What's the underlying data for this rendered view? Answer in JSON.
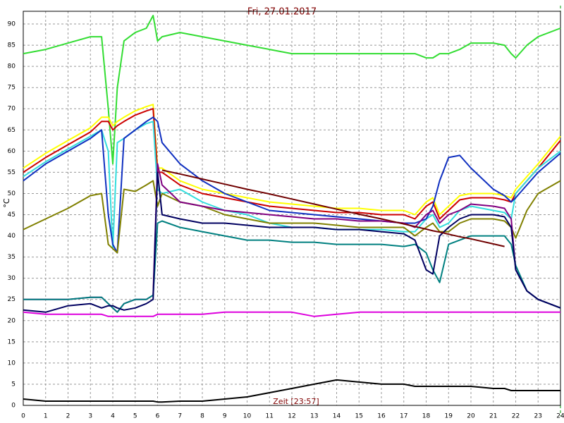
{
  "chart_data": {
    "type": "line",
    "title": "Fri, 27.01.2017",
    "y_label": "°C",
    "x_label": "Zeit [23:57]",
    "x": [
      0,
      1,
      2,
      3,
      3.5,
      3.8,
      4,
      4.2,
      4.5,
      5,
      5.5,
      5.8,
      6,
      6.2,
      7,
      8,
      9,
      10,
      11,
      12,
      13,
      14,
      15,
      16,
      17,
      17.5,
      18,
      18.3,
      18.6,
      19,
      19.5,
      20,
      21,
      21.5,
      21.8,
      22,
      22.5,
      23,
      24
    ],
    "xlim": [
      0,
      24
    ],
    "xticks": [
      0,
      1,
      2,
      3,
      4,
      5,
      6,
      7,
      8,
      9,
      10,
      11,
      12,
      13,
      14,
      15,
      16,
      17,
      18,
      19,
      20,
      21,
      22,
      23,
      24
    ],
    "ylim": [
      0,
      93
    ],
    "yticks": [
      0,
      5,
      10,
      15,
      20,
      25,
      30,
      35,
      40,
      45,
      50,
      55,
      60,
      65,
      70,
      75,
      80,
      85,
      90
    ],
    "grid": true,
    "series": [
      {
        "color": "#33dd33",
        "values": [
          83,
          84,
          85.5,
          87,
          87,
          70,
          57,
          75,
          86,
          88,
          89,
          92,
          86,
          87,
          88,
          87,
          86,
          85,
          84,
          83,
          83,
          83,
          83,
          83,
          83,
          83,
          82,
          82,
          83,
          83,
          84,
          85.5,
          85.5,
          85,
          83,
          82,
          85,
          87,
          89
        ]
      },
      {
        "color": "#ffff00",
        "values": [
          56,
          59.5,
          62.5,
          65.5,
          68,
          68,
          66,
          67,
          68,
          69.5,
          70.5,
          71,
          56,
          56,
          53,
          51,
          50,
          49,
          48,
          47.5,
          47,
          46.5,
          46.5,
          46,
          46,
          45,
          48,
          49,
          45,
          47,
          49.5,
          50,
          50,
          49.5,
          49,
          51,
          54,
          57,
          63.5
        ]
      },
      {
        "color": "#cc0000",
        "values": [
          55,
          58.5,
          61.5,
          64.5,
          67,
          67,
          65,
          66,
          67,
          68.5,
          69.5,
          70,
          55,
          55,
          52,
          50,
          49,
          48,
          47,
          46.5,
          46,
          45.5,
          45.5,
          45,
          45,
          44,
          47,
          48,
          44,
          46,
          48.5,
          49,
          49,
          48.5,
          48,
          50,
          53,
          56,
          62.5
        ]
      },
      {
        "color": "#33dddd",
        "values": [
          54,
          57.5,
          60.5,
          63.5,
          65,
          60,
          37,
          62,
          63,
          65,
          66.5,
          67,
          51,
          50,
          51,
          48,
          46,
          45,
          43,
          42,
          42,
          41.5,
          41.5,
          41.5,
          41,
          41,
          44,
          45,
          42,
          43,
          46,
          47,
          46,
          45.5,
          44,
          50,
          53,
          56,
          60
        ]
      },
      {
        "color": "#1030c0",
        "values": [
          53,
          57,
          60,
          63,
          65,
          45,
          38,
          36,
          63,
          65,
          67,
          68,
          67,
          62,
          57,
          53,
          50,
          48,
          46,
          45.5,
          45,
          44.5,
          44,
          43.5,
          43,
          43,
          44,
          47,
          53,
          58.5,
          59,
          56,
          51,
          49.5,
          48,
          49,
          52,
          55,
          59.5
        ]
      },
      {
        "color": "#808000",
        "values": [
          41.5,
          44,
          46.5,
          49.5,
          50,
          38,
          37,
          36,
          51,
          50.5,
          52,
          53,
          47,
          50,
          48,
          47,
          45,
          44,
          43,
          43,
          43,
          42.5,
          42,
          42,
          42,
          40,
          42,
          43,
          41,
          41,
          43,
          44,
          44,
          43.5,
          42,
          39.5,
          46,
          50,
          53
        ]
      },
      {
        "color": "#800080",
        "values": [
          25,
          25,
          25,
          25.5,
          25.5,
          24,
          23,
          22,
          24,
          25,
          25,
          26,
          57,
          52,
          48,
          47,
          46,
          45.5,
          45,
          44.5,
          44,
          44,
          43.5,
          43.5,
          43,
          42,
          45,
          46,
          43,
          45,
          46,
          47.5,
          47,
          46.5,
          44,
          32,
          27,
          25,
          23
        ]
      },
      {
        "color": "#008080",
        "values": [
          25,
          25,
          25,
          25.5,
          25.5,
          24,
          23,
          22,
          24,
          25,
          25,
          26,
          43,
          43.5,
          42,
          41,
          40,
          39,
          39,
          38.5,
          38.5,
          38,
          38,
          38,
          37.5,
          38,
          36,
          32,
          29,
          38,
          39,
          40,
          40,
          40,
          38,
          33,
          27,
          25,
          23
        ]
      },
      {
        "color": "#000060",
        "values": [
          22.5,
          22,
          23.5,
          24,
          23,
          23.5,
          23.5,
          23,
          22.5,
          23,
          24,
          25,
          55,
          45,
          44,
          43,
          43,
          42.5,
          42,
          42,
          42,
          41.5,
          41.5,
          41,
          40.5,
          39,
          32,
          31,
          40,
          42,
          44,
          45,
          45,
          44.5,
          42,
          32,
          27,
          25,
          23
        ]
      },
      {
        "color": "#dd00dd",
        "values": [
          22,
          21.5,
          21.5,
          21.5,
          21.5,
          21,
          21,
          21,
          21,
          21,
          21,
          21,
          21.5,
          21.5,
          21.5,
          21.5,
          22,
          22,
          22,
          22,
          21,
          21.5,
          22,
          22,
          22,
          22,
          22,
          22,
          22,
          22,
          22,
          22,
          22,
          22,
          22,
          22,
          22,
          22,
          22
        ]
      },
      {
        "color": "#700000",
        "values": [
          null,
          null,
          null,
          null,
          null,
          null,
          null,
          null,
          null,
          null,
          null,
          null,
          null,
          55.5,
          54.6,
          53.4,
          52.2,
          51,
          49.9,
          48.7,
          47.5,
          46.3,
          45.1,
          44,
          42.8,
          42.2,
          41.6,
          41.2,
          40.9,
          40.4,
          39.8,
          39.3,
          38.1,
          37.5,
          null,
          null,
          null,
          null,
          null
        ]
      },
      {
        "color": "#000000",
        "values": [
          1.5,
          1,
          1,
          1,
          1,
          1,
          1,
          1,
          1,
          1,
          1,
          1,
          0.8,
          0.8,
          1,
          1,
          1.5,
          2,
          3,
          4,
          5,
          6,
          5.5,
          5,
          5,
          4.5,
          4.5,
          4.5,
          4.5,
          4.5,
          4.5,
          4.5,
          4,
          4,
          3.5,
          3.5,
          3.5,
          3.5,
          3.5
        ]
      }
    ]
  }
}
